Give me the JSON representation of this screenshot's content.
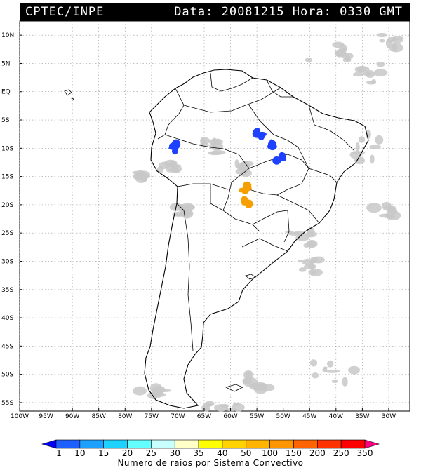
{
  "header": {
    "source": "CPTEC/INPE",
    "datetime": "Data: 20081215 Hora: 0330 GMT"
  },
  "map": {
    "lat_labels": [
      "10N",
      "5N",
      "EQ",
      "5S",
      "10S",
      "15S",
      "20S",
      "25S",
      "30S",
      "35S",
      "40S",
      "45S",
      "50S",
      "55S"
    ],
    "lon_labels": [
      "100W",
      "95W",
      "90W",
      "85W",
      "80W",
      "75W",
      "70W",
      "65W",
      "60W",
      "55W",
      "50W",
      "45W",
      "40W",
      "35W",
      "30W"
    ],
    "lat_range": [
      -56.5,
      12.5
    ],
    "lon_range": [
      -100,
      -26
    ],
    "grid": "dotted",
    "colors": {
      "cloud": "#c8c8c8",
      "coast": "#000000",
      "systems_blue": "#1e40ff",
      "systems_orange": "#f5a000"
    },
    "convective_systems": [
      {
        "color": "blue",
        "lon": -54.5,
        "lat": -7.3,
        "description": "system"
      },
      {
        "color": "blue",
        "lon": -52.0,
        "lat": -9.2,
        "description": "system"
      },
      {
        "color": "blue",
        "lon": -50.6,
        "lat": -11.7,
        "description": "system"
      },
      {
        "color": "blue",
        "lon": -70.5,
        "lat": -9.8,
        "description": "system"
      },
      {
        "color": "orange",
        "lon": -57.3,
        "lat": -17.3,
        "description": "system"
      },
      {
        "color": "orange",
        "lon": -57.0,
        "lat": -19.6,
        "description": "system"
      }
    ]
  },
  "legend": {
    "labels": [
      "1",
      "10",
      "15",
      "20",
      "25",
      "30",
      "35",
      "40",
      "50",
      "100",
      "150",
      "200",
      "250",
      "350"
    ],
    "colors": [
      "#0000ff",
      "#1e60ff",
      "#1ea0ff",
      "#1ed2ff",
      "#64ffff",
      "#c8ffff",
      "#ffffc8",
      "#ffff00",
      "#ffd200",
      "#ffb400",
      "#ff9600",
      "#ff6400",
      "#ff3200",
      "#ff0000",
      "#ff0080"
    ],
    "caption": "Numero de raios por Sistema Convectivo"
  }
}
